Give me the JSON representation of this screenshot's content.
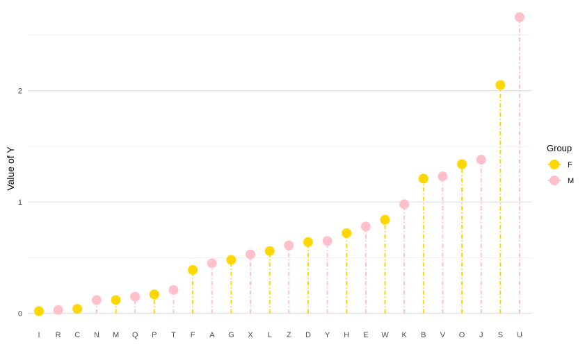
{
  "chart_data": {
    "type": "lollipop",
    "ylabel": "Value of Y",
    "xlabel": "",
    "ylim": [
      -0.04,
      2.72
    ],
    "yticks": [
      0,
      1,
      2
    ],
    "ytick_labels": [
      "0",
      "1",
      "2"
    ],
    "minor_gridlines": [
      0.5,
      1.5,
      2.5
    ],
    "grid": true,
    "legend": {
      "title": "Group",
      "placement": "right",
      "entries": [
        {
          "label": "F",
          "color": "#FFD700"
        },
        {
          "label": "M",
          "color": "#FFC0CB"
        }
      ]
    },
    "colors": {
      "F": "#FFD700",
      "M": "#FFC0CB"
    },
    "categories": [
      "I",
      "R",
      "C",
      "N",
      "M",
      "Q",
      "P",
      "T",
      "F",
      "A",
      "G",
      "X",
      "L",
      "Z",
      "D",
      "Y",
      "H",
      "E",
      "W",
      "K",
      "B",
      "V",
      "O",
      "J",
      "S",
      "U"
    ],
    "values": [
      0.02,
      0.03,
      0.04,
      0.12,
      0.12,
      0.15,
      0.17,
      0.21,
      0.39,
      0.45,
      0.48,
      0.53,
      0.56,
      0.61,
      0.64,
      0.65,
      0.72,
      0.78,
      0.84,
      0.98,
      1.21,
      1.23,
      1.34,
      1.38,
      2.05,
      2.66
    ],
    "groups": [
      "F",
      "M",
      "F",
      "M",
      "F",
      "M",
      "F",
      "M",
      "F",
      "M",
      "F",
      "M",
      "F",
      "M",
      "F",
      "M",
      "F",
      "M",
      "F",
      "M",
      "F",
      "M",
      "F",
      "M",
      "F",
      "M"
    ]
  }
}
